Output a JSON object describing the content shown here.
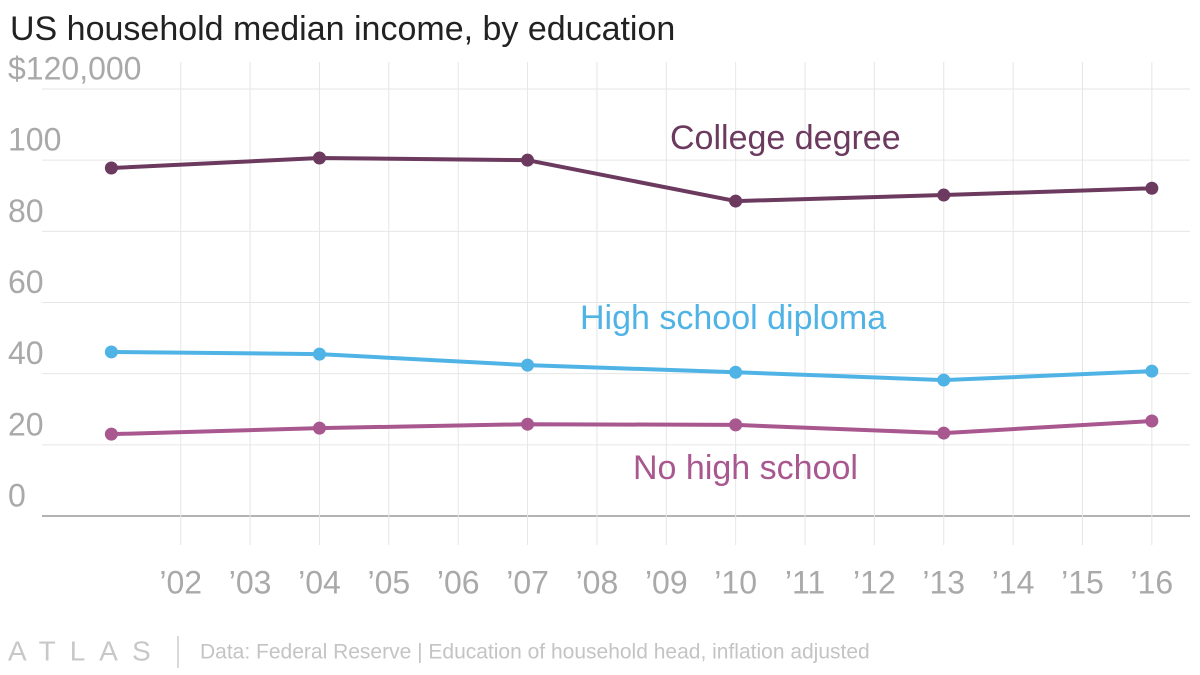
{
  "chart_data": {
    "type": "line",
    "title": "US household median income, by education",
    "x": [
      2001,
      2004,
      2007,
      2010,
      2013,
      2016
    ],
    "xlim": [
      2000,
      2016.55
    ],
    "xticks": [
      {
        "value": 2002,
        "label": "’02"
      },
      {
        "value": 2003,
        "label": "’03"
      },
      {
        "value": 2004,
        "label": "’04"
      },
      {
        "value": 2005,
        "label": "’05"
      },
      {
        "value": 2006,
        "label": "’06"
      },
      {
        "value": 2007,
        "label": "’07"
      },
      {
        "value": 2008,
        "label": "’08"
      },
      {
        "value": 2009,
        "label": "’09"
      },
      {
        "value": 2010,
        "label": "’10"
      },
      {
        "value": 2011,
        "label": "’11"
      },
      {
        "value": 2012,
        "label": "’12"
      },
      {
        "value": 2013,
        "label": "’13"
      },
      {
        "value": 2014,
        "label": "’14"
      },
      {
        "value": 2015,
        "label": "’15"
      },
      {
        "value": 2016,
        "label": "’16"
      }
    ],
    "ylim": [
      -7,
      120
    ],
    "yticks": [
      0,
      20,
      40,
      60,
      80,
      100,
      {
        "value": 120,
        "label": "$120,000"
      }
    ],
    "grid": true,
    "series": [
      {
        "name": "College degree",
        "color": "#6b3a5e",
        "values": [
          97.8,
          100.6,
          100,
          88.5,
          90.2,
          92.1
        ]
      },
      {
        "name": "High school diploma",
        "color": "#4fb3e6",
        "values": [
          46.1,
          45.5,
          42.4,
          40.4,
          38.2,
          40.7
        ]
      },
      {
        "name": "No high school",
        "color": "#a8578f",
        "values": [
          23.0,
          24.7,
          25.8,
          25.6,
          23.3,
          26.7
        ]
      }
    ],
    "logo": "ATLAS",
    "source": "Data: Federal Reserve | Education of household head, inflation adjusted"
  }
}
